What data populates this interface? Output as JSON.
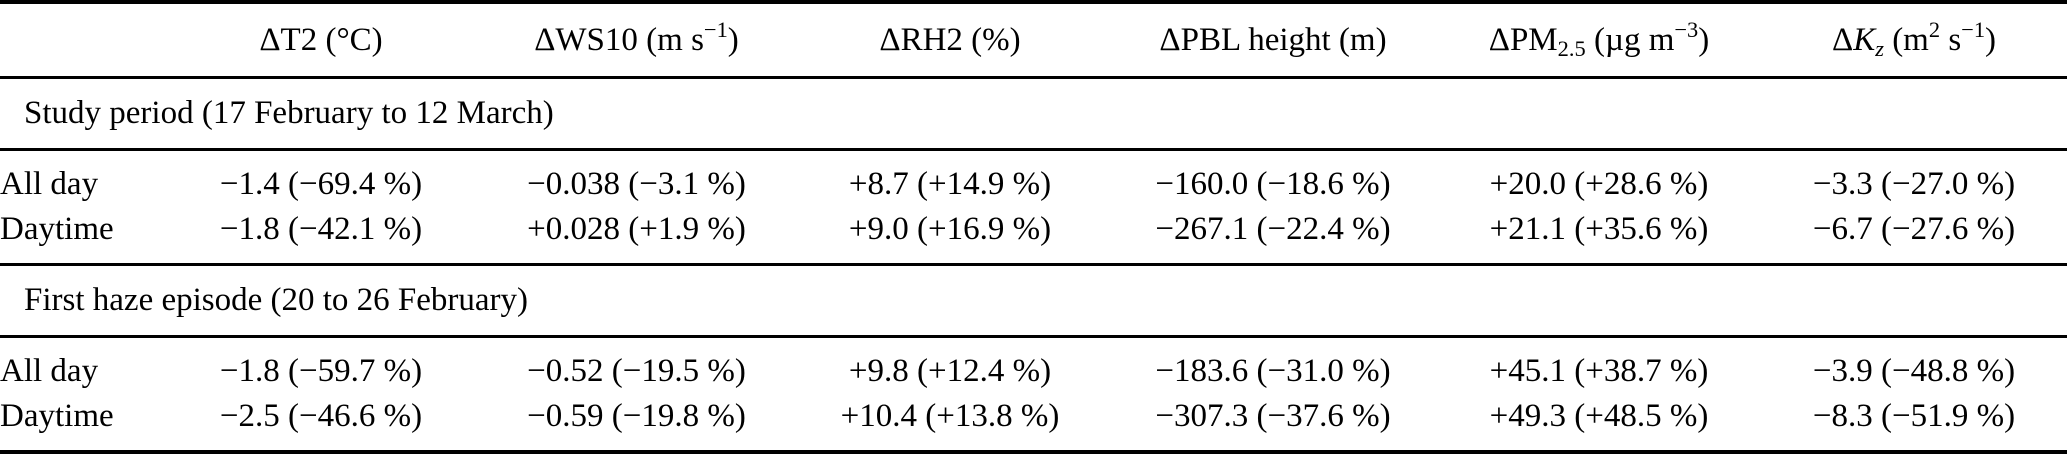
{
  "colors": {
    "background": "#ffffff",
    "text": "#000000",
    "rule": "#000000"
  },
  "table": {
    "columns": [
      {
        "id": "row-label",
        "parts": [
          {
            "t": ""
          }
        ]
      },
      {
        "id": "delta-t2",
        "parts": [
          {
            "t": "ΔT2 (°C)"
          }
        ]
      },
      {
        "id": "delta-ws10",
        "parts": [
          {
            "t": "ΔWS10 (m s"
          },
          {
            "t": "−1",
            "s": "sup"
          },
          {
            "t": ")"
          }
        ]
      },
      {
        "id": "delta-rh2",
        "parts": [
          {
            "t": "ΔRH2 (%)"
          }
        ]
      },
      {
        "id": "delta-pbl-height",
        "parts": [
          {
            "t": "ΔPBL height (m)"
          }
        ]
      },
      {
        "id": "delta-pm25",
        "parts": [
          {
            "t": "ΔPM"
          },
          {
            "t": "2.5",
            "s": "sub"
          },
          {
            "t": " (µg m"
          },
          {
            "t": "−3",
            "s": "sup"
          },
          {
            "t": ")"
          }
        ]
      },
      {
        "id": "delta-kz",
        "parts": [
          {
            "t": "Δ"
          },
          {
            "t": "K",
            "s": "it"
          },
          {
            "t": "z",
            "s": "it sub"
          },
          {
            "t": " (m"
          },
          {
            "t": "2",
            "s": "sup"
          },
          {
            "t": " s"
          },
          {
            "t": "−1",
            "s": "sup"
          },
          {
            "t": ")"
          }
        ]
      }
    ],
    "sections": [
      {
        "title": "Study period (17 February to 12 March)",
        "rows": [
          {
            "label": "All day",
            "values": [
              "−1.4 (−69.4 %)",
              "−0.038 (−3.1 %)",
              "+8.7 (+14.9 %)",
              "−160.0 (−18.6 %)",
              "+20.0 (+28.6 %)",
              "−3.3 (−27.0 %)"
            ]
          },
          {
            "label": "Daytime",
            "values": [
              "−1.8 (−42.1 %)",
              "+0.028 (+1.9 %)",
              "+9.0 (+16.9 %)",
              "−267.1 (−22.4 %)",
              "+21.1 (+35.6 %)",
              "−6.7 (−27.6 %)"
            ]
          }
        ]
      },
      {
        "title": "First haze episode (20 to 26 February)",
        "rows": [
          {
            "label": "All day",
            "values": [
              "−1.8 (−59.7 %)",
              "−0.52 (−19.5 %)",
              "+9.8 (+12.4 %)",
              "−183.6 (−31.0 %)",
              "+45.1 (+38.7 %)",
              "−3.9 (−48.8 %)"
            ]
          },
          {
            "label": "Daytime",
            "values": [
              "−2.5 (−46.6 %)",
              "−0.59 (−19.8 %)",
              "+10.4 (+13.8 %)",
              "−307.3 (−37.6 %)",
              "+49.3 (+48.5 %)",
              "−8.3 (−51.9 %)"
            ]
          }
        ]
      }
    ]
  }
}
